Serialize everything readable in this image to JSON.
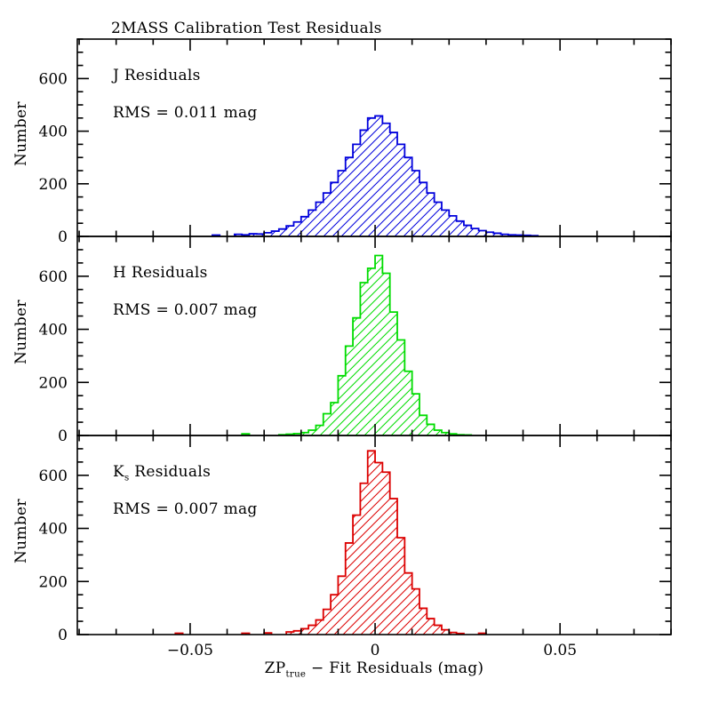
{
  "chart_data": {
    "type": "histogram",
    "title": "2MASS Calibration Test Residuals",
    "ylabel": "Number",
    "xlabel_parts": {
      "prefix": "ZP",
      "sub": "true",
      "rest": " − Fit Residuals (mag)"
    },
    "xlim": [
      -0.0805,
      0.08
    ],
    "ylim": [
      0,
      750
    ],
    "x_major_ticks": [
      -0.05,
      0,
      0.05
    ],
    "x_tick_labels": [
      "−0.05",
      "0",
      "0.05"
    ],
    "x_minor_step": 0.01,
    "y_major_ticks": [
      0,
      200,
      400,
      600
    ],
    "y_tick_labels": [
      "0",
      "200",
      "400",
      "600"
    ],
    "y_minor_step": 50,
    "bin_width": 0.002,
    "background": "#ffffff",
    "axis_color": "#000000",
    "legend_position": "none",
    "grid": false,
    "panels": [
      {
        "band": "J",
        "band_sub": "",
        "label_rest": " Residuals",
        "rms": "RMS = 0.011 mag",
        "color": "#0000dc",
        "bins": [
          [
            -0.043,
            5
          ],
          [
            -0.037,
            8
          ],
          [
            -0.035,
            6
          ],
          [
            -0.033,
            10
          ],
          [
            -0.031,
            9
          ],
          [
            -0.029,
            14
          ],
          [
            -0.027,
            20
          ],
          [
            -0.025,
            28
          ],
          [
            -0.023,
            40
          ],
          [
            -0.021,
            55
          ],
          [
            -0.019,
            75
          ],
          [
            -0.017,
            100
          ],
          [
            -0.015,
            130
          ],
          [
            -0.013,
            165
          ],
          [
            -0.011,
            205
          ],
          [
            -0.009,
            250
          ],
          [
            -0.007,
            300
          ],
          [
            -0.005,
            350
          ],
          [
            -0.003,
            404
          ],
          [
            -0.001,
            450
          ],
          [
            0.001,
            458
          ],
          [
            0.003,
            430
          ],
          [
            0.005,
            395
          ],
          [
            0.007,
            350
          ],
          [
            0.009,
            300
          ],
          [
            0.011,
            250
          ],
          [
            0.013,
            205
          ],
          [
            0.015,
            165
          ],
          [
            0.017,
            130
          ],
          [
            0.019,
            100
          ],
          [
            0.021,
            78
          ],
          [
            0.023,
            58
          ],
          [
            0.025,
            42
          ],
          [
            0.027,
            30
          ],
          [
            0.029,
            22
          ],
          [
            0.031,
            16
          ],
          [
            0.033,
            12
          ],
          [
            0.035,
            8
          ],
          [
            0.037,
            6
          ],
          [
            0.039,
            5
          ],
          [
            0.041,
            4
          ],
          [
            0.043,
            3
          ]
        ]
      },
      {
        "band": "H",
        "band_sub": "",
        "label_rest": " Residuals",
        "rms": "RMS = 0.007 mag",
        "color": "#00dc00",
        "bins": [
          [
            -0.035,
            6
          ],
          [
            -0.025,
            3
          ],
          [
            -0.023,
            5
          ],
          [
            -0.021,
            7
          ],
          [
            -0.019,
            11
          ],
          [
            -0.017,
            20
          ],
          [
            -0.015,
            38
          ],
          [
            -0.013,
            82
          ],
          [
            -0.011,
            124
          ],
          [
            -0.009,
            225
          ],
          [
            -0.007,
            337
          ],
          [
            -0.005,
            443
          ],
          [
            -0.003,
            576
          ],
          [
            -0.001,
            630
          ],
          [
            0.001,
            678
          ],
          [
            0.003,
            611
          ],
          [
            0.005,
            465
          ],
          [
            0.007,
            360
          ],
          [
            0.009,
            242
          ],
          [
            0.011,
            157
          ],
          [
            0.013,
            76
          ],
          [
            0.015,
            42
          ],
          [
            0.017,
            20
          ],
          [
            0.019,
            11
          ],
          [
            0.021,
            6
          ],
          [
            0.023,
            3
          ],
          [
            0.025,
            2
          ]
        ]
      },
      {
        "band": "K",
        "band_sub": "s",
        "label_rest": " Residuals",
        "rms": "RMS = 0.007 mag",
        "color": "#dc0000",
        "bins": [
          [
            -0.053,
            5
          ],
          [
            -0.035,
            5
          ],
          [
            -0.029,
            6
          ],
          [
            -0.023,
            10
          ],
          [
            -0.021,
            14
          ],
          [
            -0.019,
            22
          ],
          [
            -0.017,
            35
          ],
          [
            -0.015,
            55
          ],
          [
            -0.013,
            95
          ],
          [
            -0.011,
            150
          ],
          [
            -0.009,
            220
          ],
          [
            -0.007,
            345
          ],
          [
            -0.005,
            450
          ],
          [
            -0.003,
            570
          ],
          [
            -0.001,
            692
          ],
          [
            0.001,
            648
          ],
          [
            0.003,
            612
          ],
          [
            0.005,
            512
          ],
          [
            0.007,
            365
          ],
          [
            0.009,
            232
          ],
          [
            0.011,
            172
          ],
          [
            0.013,
            99
          ],
          [
            0.015,
            60
          ],
          [
            0.017,
            35
          ],
          [
            0.019,
            18
          ],
          [
            0.021,
            8
          ],
          [
            0.023,
            4
          ],
          [
            0.029,
            5
          ]
        ]
      }
    ]
  }
}
